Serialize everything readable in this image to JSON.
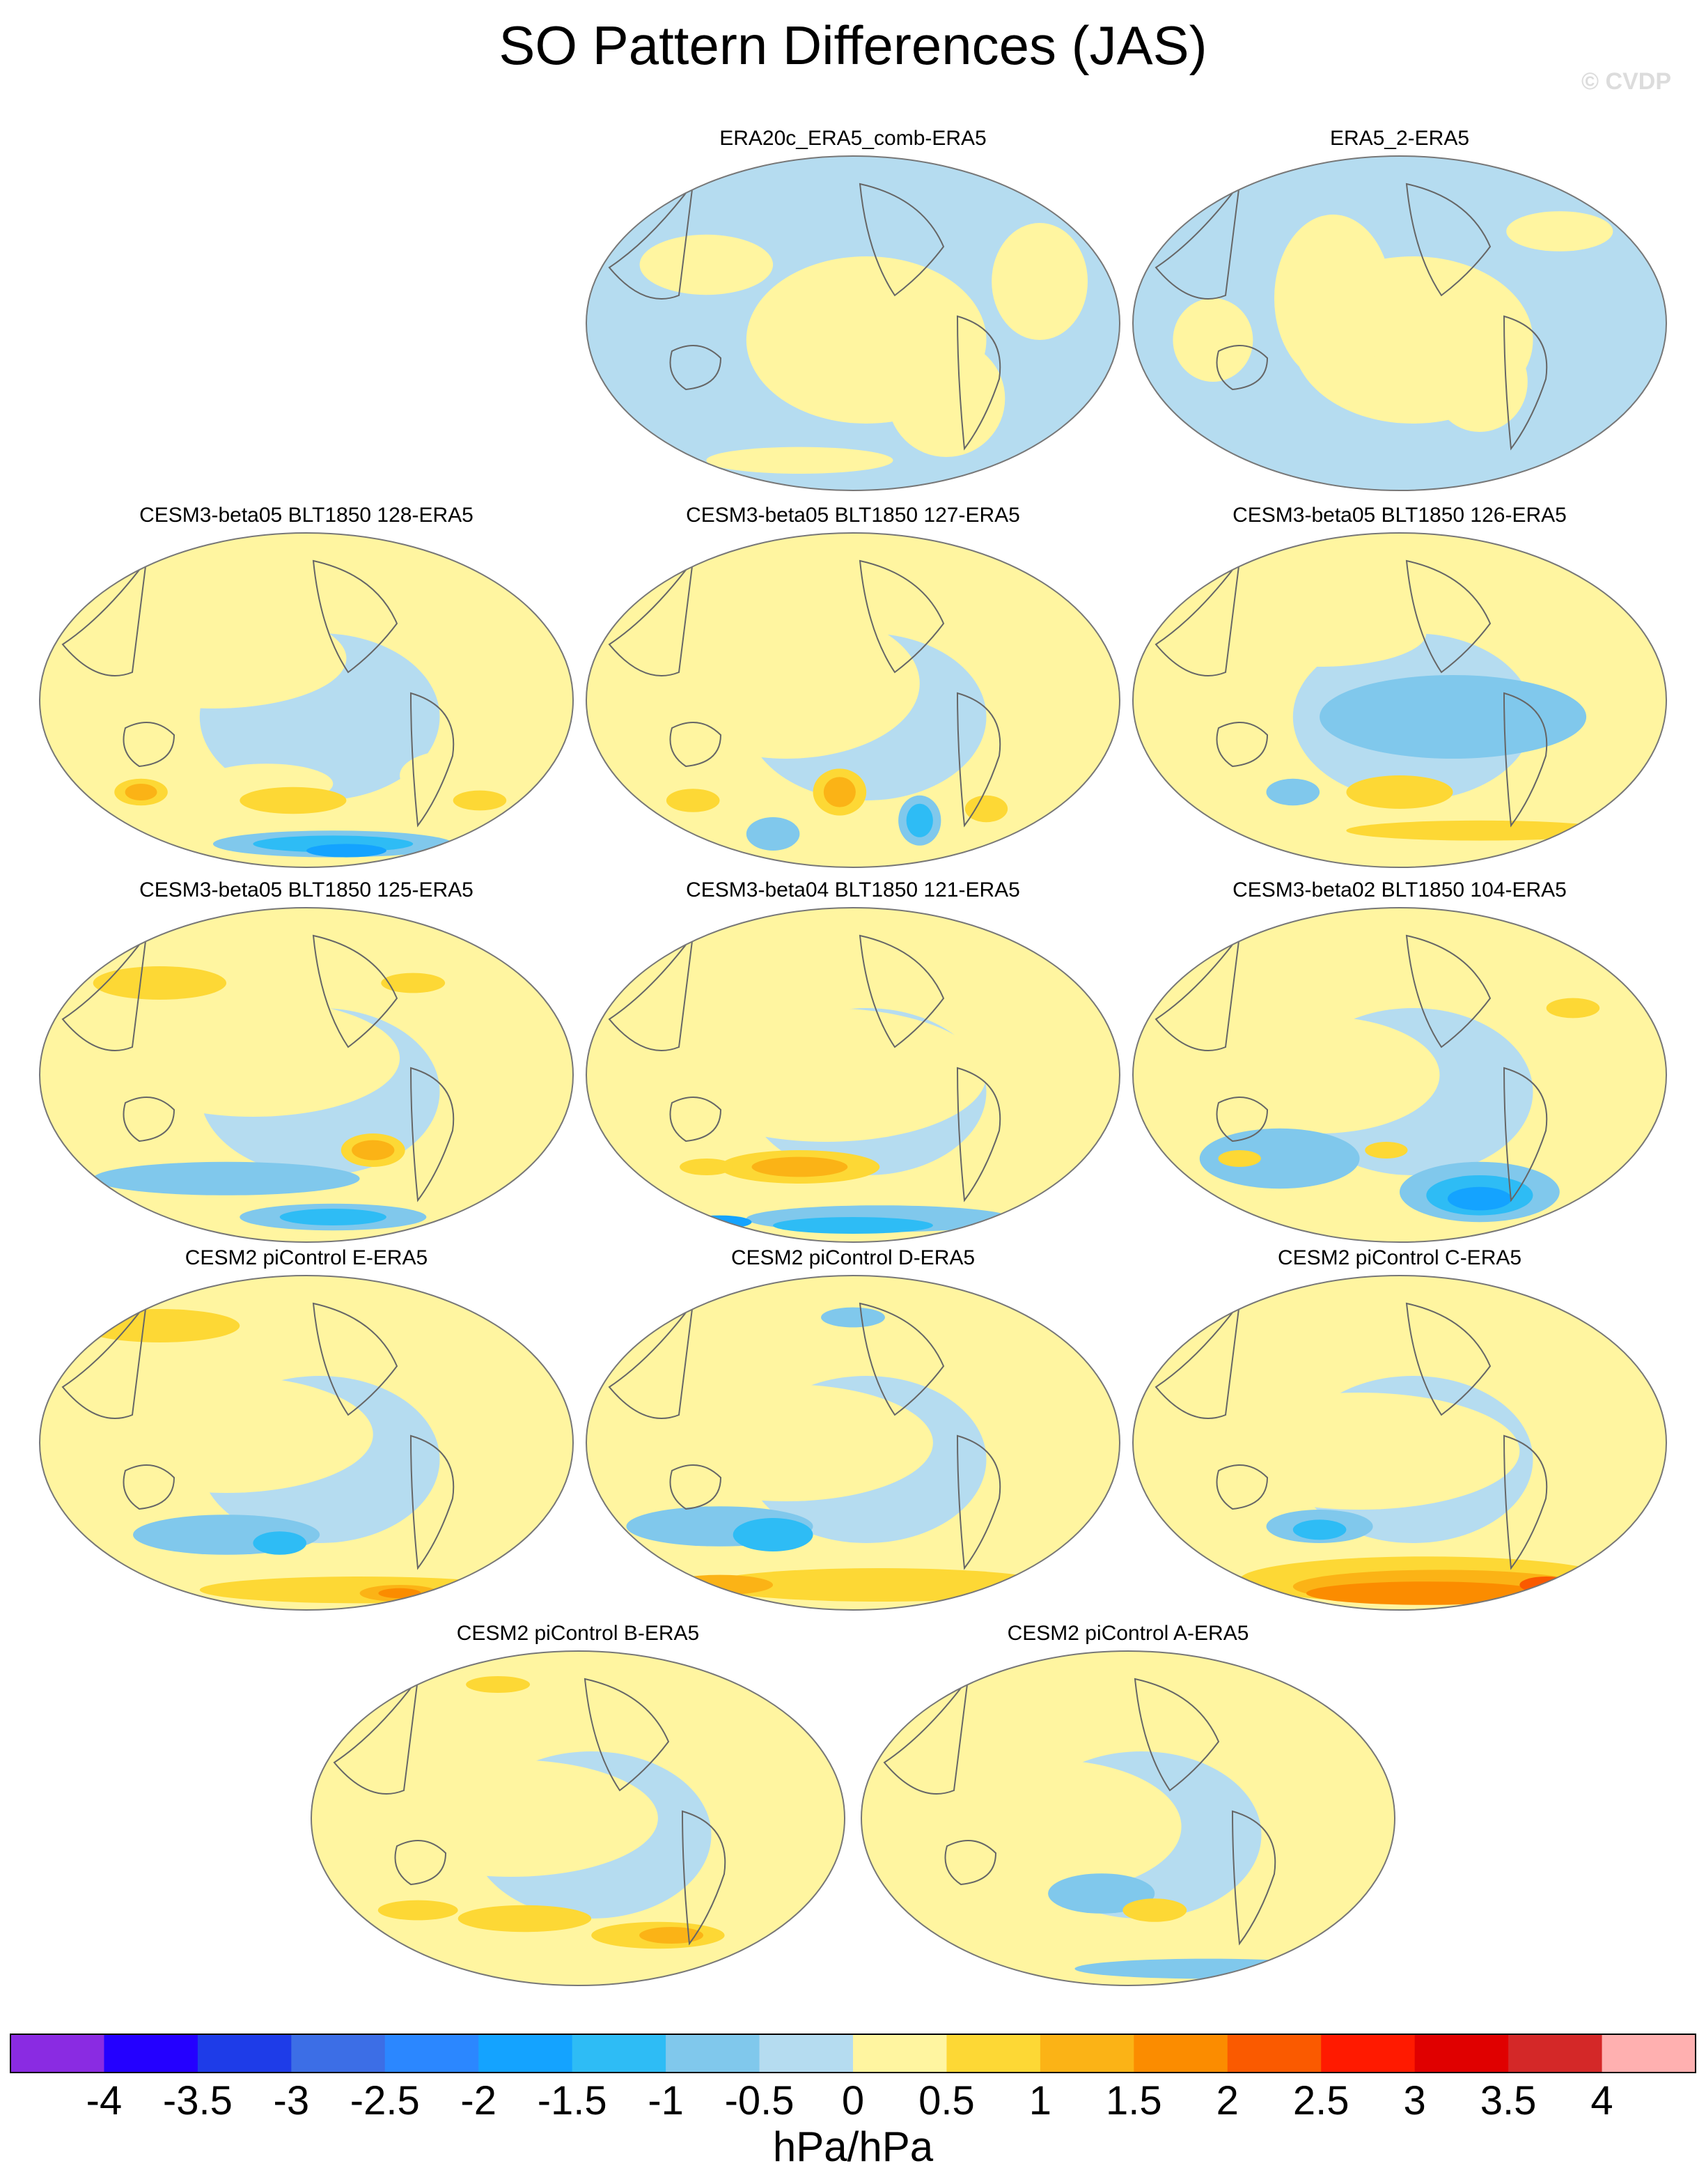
{
  "figure": {
    "title": "SO Pattern Differences (JAS)",
    "watermark": "© CVDP",
    "units": "hPa/hPa"
  },
  "panels": [
    {
      "id": "p0",
      "title": "ERA20c_ERA5_comb-ERA5"
    },
    {
      "id": "p1",
      "title": "ERA5_2-ERA5"
    },
    {
      "id": "p2",
      "title": "CESM3-beta05 BLT1850 128-ERA5"
    },
    {
      "id": "p3",
      "title": "CESM3-beta05 BLT1850 127-ERA5"
    },
    {
      "id": "p4",
      "title": "CESM3-beta05 BLT1850 126-ERA5"
    },
    {
      "id": "p5",
      "title": "CESM3-beta05 BLT1850 125-ERA5"
    },
    {
      "id": "p6",
      "title": "CESM3-beta04 BLT1850 121-ERA5"
    },
    {
      "id": "p7",
      "title": "CESM3-beta02 BLT1850 104-ERA5"
    },
    {
      "id": "p8",
      "title": "CESM2 piControl E-ERA5"
    },
    {
      "id": "p9",
      "title": "CESM2 piControl D-ERA5"
    },
    {
      "id": "p10",
      "title": "CESM2 piControl C-ERA5"
    },
    {
      "id": "p11",
      "title": "CESM2 piControl B-ERA5"
    },
    {
      "id": "p12",
      "title": "CESM2 piControl A-ERA5"
    }
  ],
  "colorbar": {
    "colors": [
      "#8a2be2",
      "#2400ff",
      "#1e3ce8",
      "#3c6ee6",
      "#2b87ff",
      "#14a3ff",
      "#2ebcf5",
      "#80c8ec",
      "#b5dcf0",
      "#fff5a0",
      "#fdd835",
      "#fbb316",
      "#fb8c00",
      "#fa5a00",
      "#ff1a00",
      "#e00000",
      "#d42828",
      "#ffb0b0"
    ],
    "labels": [
      "-4",
      "-3.5",
      "-3",
      "-2.5",
      "-2",
      "-1.5",
      "-1",
      "-0.5",
      "0",
      "0.5",
      "1",
      "1.5",
      "2",
      "2.5",
      "3",
      "3.5",
      "4"
    ]
  }
}
